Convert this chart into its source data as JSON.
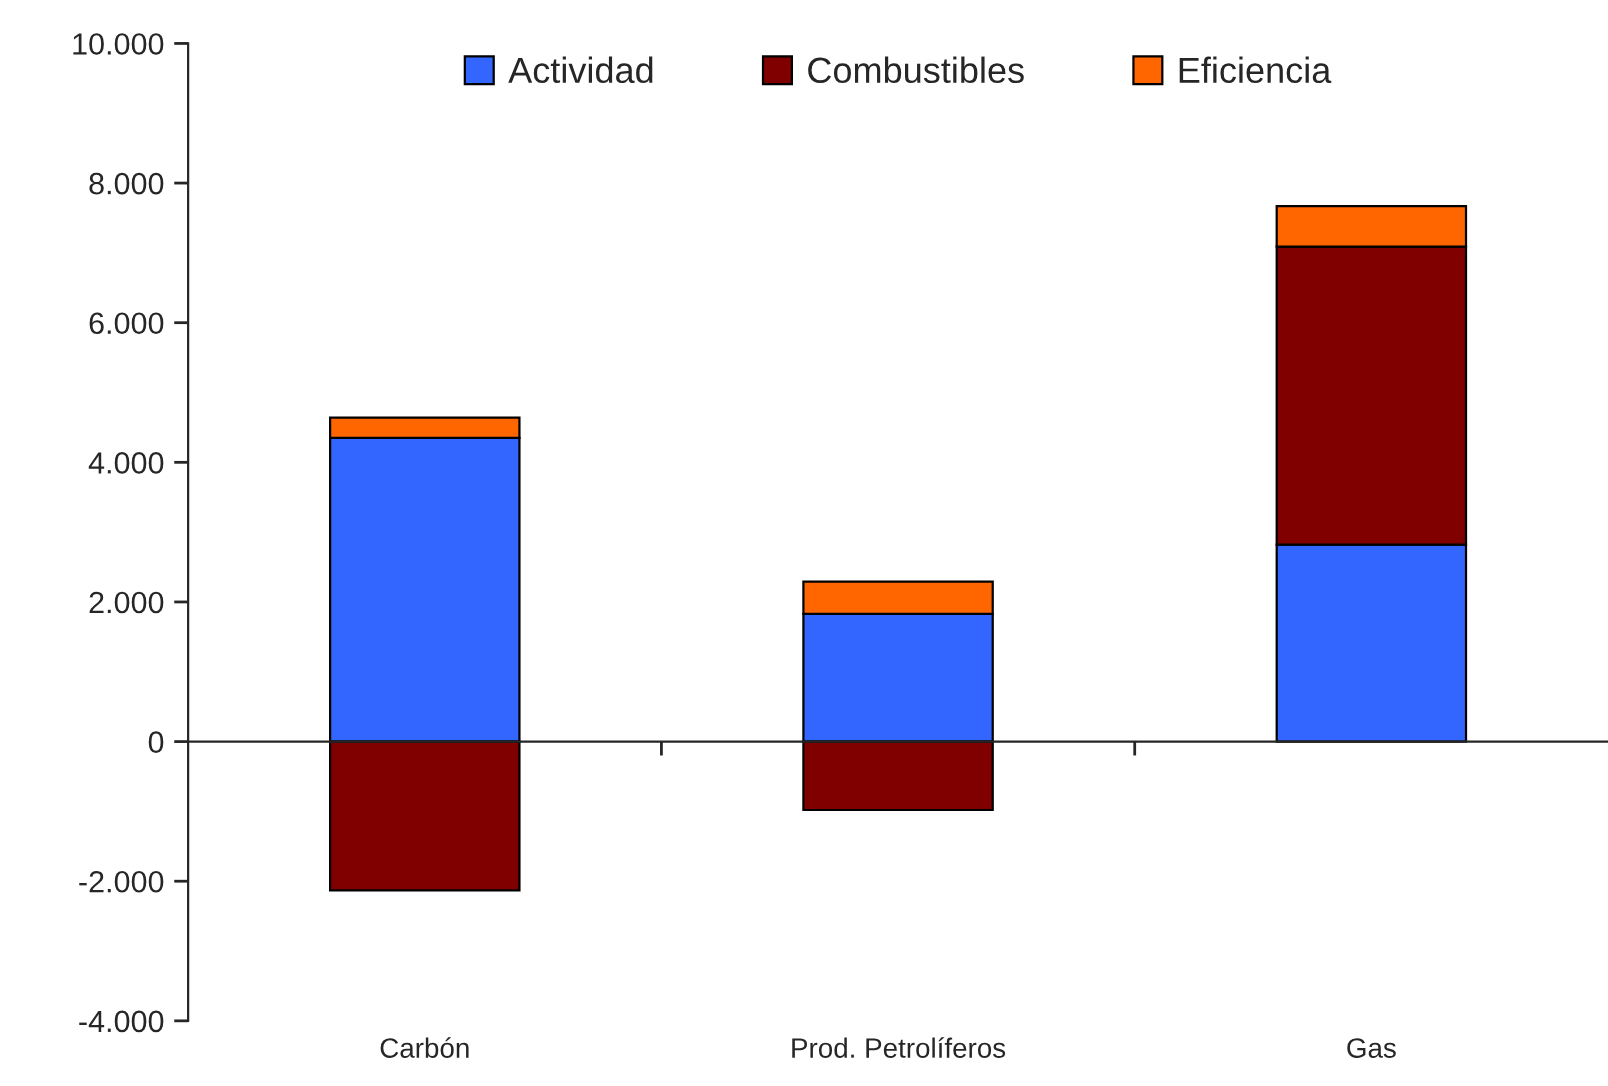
{
  "chart_data": {
    "type": "bar",
    "stacked": true,
    "categories": [
      "Carbón",
      "Prod. Petrolíferos",
      "Gas"
    ],
    "series": [
      {
        "name": "Actividad",
        "color": "#3366ff",
        "values": [
          4350,
          1830,
          2820
        ]
      },
      {
        "name": "Combustibles",
        "color": "#800000",
        "values": [
          -2130,
          -980,
          4270
        ]
      },
      {
        "name": "Eficiencia",
        "color": "#ff6600",
        "values": [
          290,
          460,
          580
        ]
      }
    ],
    "ylim": [
      -4000,
      10000
    ],
    "yticks": [
      {
        "value": -4000,
        "label": "-4.000"
      },
      {
        "value": -2000,
        "label": "-2.000"
      },
      0,
      {
        "value": 2000,
        "label": "2.000"
      },
      {
        "value": 4000,
        "label": "4.000"
      },
      {
        "value": 6000,
        "label": "6.000"
      },
      {
        "value": 8000,
        "label": "8.000"
      },
      {
        "value": 10000,
        "label": "10.000"
      }
    ],
    "legend": "top"
  }
}
